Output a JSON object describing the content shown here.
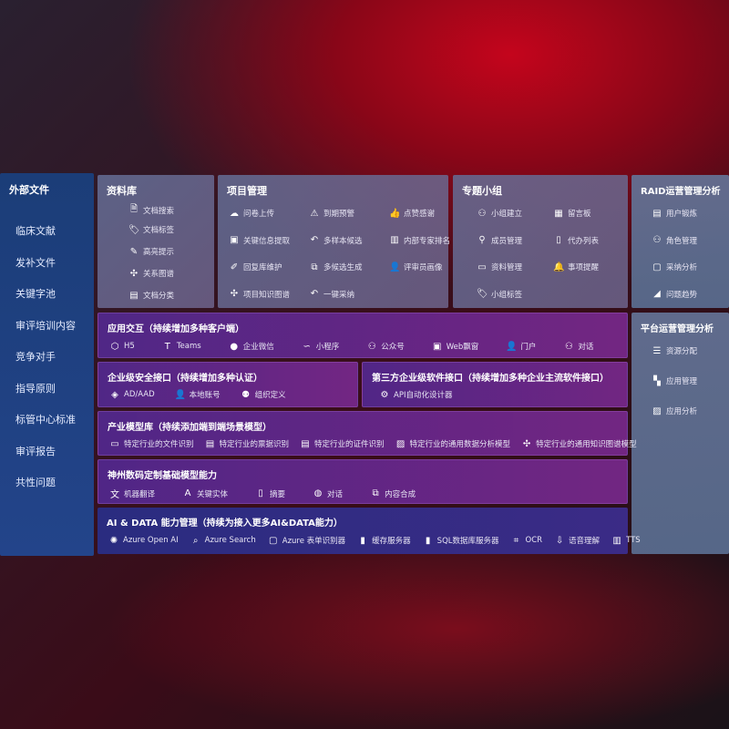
{
  "sidebar": {
    "title": "外部文件",
    "items": [
      "临床文献",
      "发补文件",
      "关键字池",
      "审评培训内容",
      "竞争对手",
      "指导原则",
      "标管中心标准",
      "审评报告",
      "共性问题"
    ]
  },
  "library": {
    "title": "资料库",
    "items": [
      {
        "icon": "doc-search-icon",
        "label": "文档搜索"
      },
      {
        "icon": "tag-icon",
        "label": "文档标签"
      },
      {
        "icon": "pen-icon",
        "label": "高亮提示"
      },
      {
        "icon": "graph-icon",
        "label": "关系图谱"
      },
      {
        "icon": "doc-classify-icon",
        "label": "文档分类"
      }
    ]
  },
  "project": {
    "title": "项目管理",
    "items": [
      {
        "icon": "cloud-upload-icon",
        "label": "问卷上传"
      },
      {
        "icon": "alarm-icon",
        "label": "到期预警"
      },
      {
        "icon": "thumbs-up-icon",
        "label": "点赞感谢"
      },
      {
        "icon": "window-icon",
        "label": "关键信息提取"
      },
      {
        "icon": "reply-icon",
        "label": "多样本候选"
      },
      {
        "icon": "ranking-icon",
        "label": "内部专家排名"
      },
      {
        "icon": "edit-icon",
        "label": "回复库维护"
      },
      {
        "icon": "puzzle-icon",
        "label": "多候选生成"
      },
      {
        "icon": "user-icon",
        "label": "评审员画像"
      },
      {
        "icon": "graph-icon",
        "label": "项目知识图谱"
      },
      {
        "icon": "reply-icon",
        "label": "一键采纳"
      }
    ]
  },
  "group": {
    "title": "专题小组",
    "items": [
      {
        "icon": "users-icon",
        "label": "小组建立"
      },
      {
        "icon": "bbs-icon",
        "label": "留言板"
      },
      {
        "icon": "user-add-icon",
        "label": "成员管理"
      },
      {
        "icon": "clipboard-icon",
        "label": "代办列表"
      },
      {
        "icon": "folder-icon",
        "label": "资料管理"
      },
      {
        "icon": "bell-icon",
        "label": "事项提醒"
      },
      {
        "icon": "tag-icon",
        "label": "小组标签"
      }
    ]
  },
  "raid": {
    "title": "RAID运营管理分析",
    "items": [
      {
        "icon": "id-card-icon",
        "label": "用户锻炼"
      },
      {
        "icon": "users-icon",
        "label": "角色管理"
      },
      {
        "icon": "qa-icon",
        "label": "采纳分析"
      },
      {
        "icon": "trend-icon",
        "label": "问题趋势"
      }
    ]
  },
  "platform": {
    "title": "平台运营管理分析",
    "items": [
      {
        "icon": "list-icon",
        "label": "资源分配"
      },
      {
        "icon": "apps-icon",
        "label": "应用管理"
      },
      {
        "icon": "chart-icon",
        "label": "应用分析"
      }
    ]
  },
  "interaction": {
    "title": "应用交互（持续增加多种客户端）",
    "items": [
      {
        "icon": "html5-icon",
        "label": "H5"
      },
      {
        "icon": "teams-icon",
        "label": "Teams"
      },
      {
        "icon": "wechat-work-icon",
        "label": "企业微信"
      },
      {
        "icon": "miniprogram-icon",
        "label": "小程序"
      },
      {
        "icon": "users-icon",
        "label": "公众号"
      },
      {
        "icon": "window-icon",
        "label": "Web飘窗"
      },
      {
        "icon": "portal-icon",
        "label": "门户"
      },
      {
        "icon": "chat-users-icon",
        "label": "对话"
      }
    ]
  },
  "security": {
    "title": "企业级安全接口（持续增加多种认证）",
    "items": [
      {
        "icon": "ad-icon",
        "label": "AD/AAD"
      },
      {
        "icon": "local-user-icon",
        "label": "本地账号"
      },
      {
        "icon": "org-icon",
        "label": "组织定义"
      }
    ]
  },
  "thirdparty": {
    "title": "第三方企业级软件接口（持续增加多种企业主流软件接口）",
    "items": [
      {
        "icon": "gear-icon",
        "label": "API自动化设计器"
      }
    ]
  },
  "industry": {
    "title": "产业模型库（持续添加端到端场景模型）",
    "items": [
      {
        "icon": "file-icon",
        "label": "特定行业的文件识别"
      },
      {
        "icon": "receipt-icon",
        "label": "特定行业的票据识别"
      },
      {
        "icon": "id-card-icon",
        "label": "特定行业的证件识别"
      },
      {
        "icon": "image-chart-icon",
        "label": "特定行业的通用数据分析模型"
      },
      {
        "icon": "graph-icon",
        "label": "特定行业的通用知识图谱模型"
      }
    ]
  },
  "base": {
    "title": "神州数码定制基础模型能力",
    "items": [
      {
        "icon": "translate-icon",
        "label": "机器翻译"
      },
      {
        "icon": "entity-icon",
        "label": "关键实体"
      },
      {
        "icon": "summary-icon",
        "label": "摘要"
      },
      {
        "icon": "chat-icon",
        "label": "对话"
      },
      {
        "icon": "puzzle-icon",
        "label": "内容合成"
      }
    ]
  },
  "aidata": {
    "title": "AI & DATA 能力管理（持续为接入更多AI&DATA能力）",
    "items": [
      {
        "icon": "openai-icon",
        "label": "Azure Open AI"
      },
      {
        "icon": "search-icon",
        "label": "Azure Search"
      },
      {
        "icon": "form-icon",
        "label": "Azure 表单识别器"
      },
      {
        "icon": "cache-icon",
        "label": "缓存服务器"
      },
      {
        "icon": "sql-icon",
        "label": "SQL数据库服务器"
      },
      {
        "icon": "ocr-icon",
        "label": "OCR"
      },
      {
        "icon": "speech-icon",
        "label": "语音理解"
      },
      {
        "icon": "tts-icon",
        "label": "TTS"
      }
    ]
  }
}
